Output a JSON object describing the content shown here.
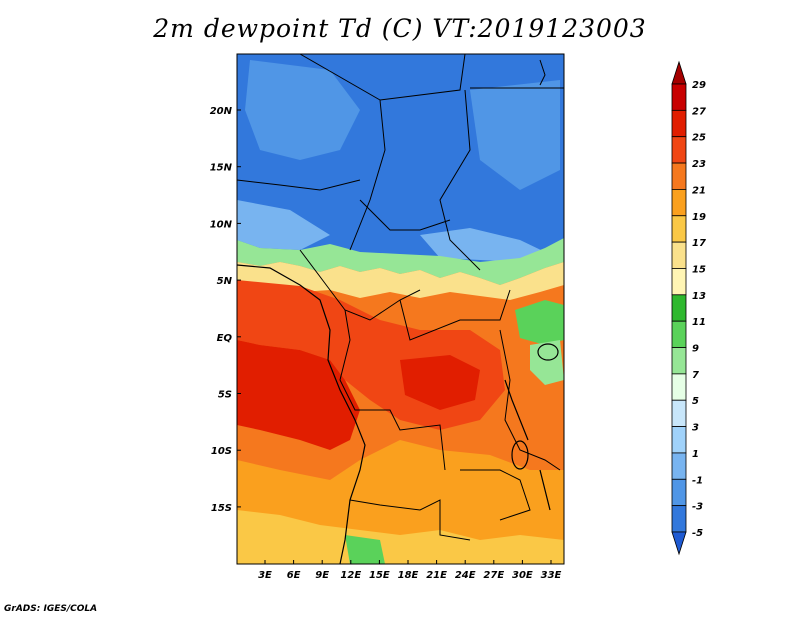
{
  "title": "2m dewpoint Td (C) VT:2019123003",
  "credit": "GrADS: IGES/COLA",
  "map": {
    "y_axis_labels": [
      "20N",
      "15N",
      "10N",
      "5N",
      "EQ",
      "5S",
      "10S",
      "15S"
    ],
    "x_axis_labels": [
      "3E",
      "6E",
      "9E",
      "12E",
      "15E",
      "18E",
      "21E",
      "24E",
      "27E",
      "30E",
      "33E"
    ],
    "region": "Central Africa"
  },
  "colorbar": {
    "labels": [
      "29",
      "27",
      "25",
      "23",
      "21",
      "19",
      "17",
      "15",
      "13",
      "11",
      "9",
      "7",
      "5",
      "3",
      "1",
      "-1",
      "-3",
      "-5"
    ],
    "colors": [
      "#a50000",
      "#c80000",
      "#e11e00",
      "#f04614",
      "#f5781e",
      "#faa01e",
      "#fac846",
      "#fae18c",
      "#fff5b4",
      "#2eb82e",
      "#5ad25a",
      "#96e696",
      "#e6ffe6",
      "#c8e6fa",
      "#a0d2fa",
      "#78b4f0",
      "#5096e6",
      "#3278dc",
      "#1e5ad2"
    ]
  }
}
